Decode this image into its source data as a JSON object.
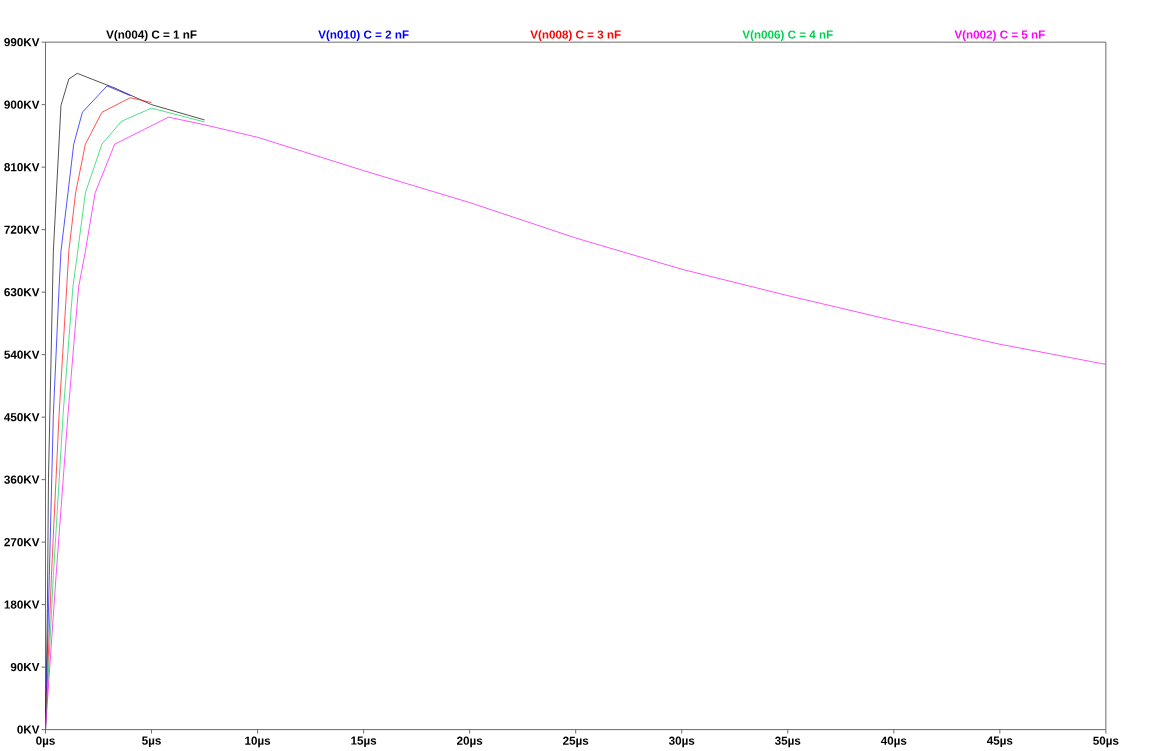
{
  "chart_data": {
    "type": "line",
    "legend": "top",
    "xlim": [
      0,
      50
    ],
    "ylim": [
      0,
      990
    ],
    "xticks": [
      {
        "value": 0,
        "label": "0µs"
      },
      {
        "value": 5,
        "label": "5µs"
      },
      {
        "value": 10,
        "label": "10µs"
      },
      {
        "value": 15,
        "label": "15µs"
      },
      {
        "value": 20,
        "label": "20µs"
      },
      {
        "value": 25,
        "label": "25µs"
      },
      {
        "value": 30,
        "label": "30µs"
      },
      {
        "value": 35,
        "label": "35µs"
      },
      {
        "value": 40,
        "label": "40µs"
      },
      {
        "value": 45,
        "label": "45µs"
      },
      {
        "value": 50,
        "label": "50µs"
      }
    ],
    "yticks": [
      {
        "value": 0,
        "label": "0KV"
      },
      {
        "value": 90,
        "label": "90KV"
      },
      {
        "value": 180,
        "label": "180KV"
      },
      {
        "value": 270,
        "label": "270KV"
      },
      {
        "value": 360,
        "label": "360KV"
      },
      {
        "value": 450,
        "label": "450KV"
      },
      {
        "value": 540,
        "label": "540KV"
      },
      {
        "value": 630,
        "label": "630KV"
      },
      {
        "value": 720,
        "label": "720KV"
      },
      {
        "value": 810,
        "label": "810KV"
      },
      {
        "value": 900,
        "label": "900KV"
      },
      {
        "value": 990,
        "label": "990KV"
      }
    ],
    "annotations": [
      "C = 1 nF",
      "C = 2 nF",
      "C = 3 nF",
      "C = 4 nF",
      "C = 5 nF"
    ],
    "series": [
      {
        "name": "V(n004)",
        "color": "#000000",
        "x": [
          0,
          0.09,
          0.14,
          0.37,
          0.73,
          1.1,
          1.5,
          3.26,
          5,
          7.5
        ],
        "values": [
          0,
          174,
          362,
          689,
          899,
          937,
          945,
          924,
          900,
          878
        ]
      },
      {
        "name": "V(n010)",
        "color": "#0000ff",
        "x": [
          0,
          0.18,
          0.37,
          0.64,
          0.73,
          1.06,
          1.33,
          1.74,
          2.9,
          4
        ],
        "values": [
          0,
          222,
          454,
          637,
          689,
          773,
          843,
          889,
          927,
          913
        ]
      },
      {
        "name": "V(n008)",
        "color": "#ff0000",
        "x": [
          0,
          0.28,
          0.64,
          1.0,
          1.1,
          1.42,
          1.88,
          2.66,
          4.0,
          5.0
        ],
        "values": [
          0,
          222,
          454,
          637,
          689,
          773,
          843,
          889,
          910,
          903
        ]
      },
      {
        "name": "V(n006)",
        "color": "#00d050",
        "x": [
          0,
          0.37,
          0.83,
          1.29,
          1.52,
          1.88,
          2.66,
          3.58,
          5.0,
          7.5
        ],
        "values": [
          0,
          222,
          454,
          637,
          689,
          773,
          843,
          876,
          895,
          875
        ]
      },
      {
        "name": "V(n002)",
        "color": "#ff00ff",
        "x": [
          0,
          0.18,
          0.5,
          1.06,
          1.56,
          1.88,
          2.34,
          3.26,
          5.8,
          7.5,
          10,
          15,
          20,
          25,
          30,
          35,
          40,
          45,
          50
        ],
        "values": [
          0,
          81,
          222,
          454,
          637,
          689,
          773,
          843,
          882,
          871,
          853,
          805,
          759,
          708,
          663,
          625,
          589,
          555,
          526
        ]
      }
    ]
  }
}
